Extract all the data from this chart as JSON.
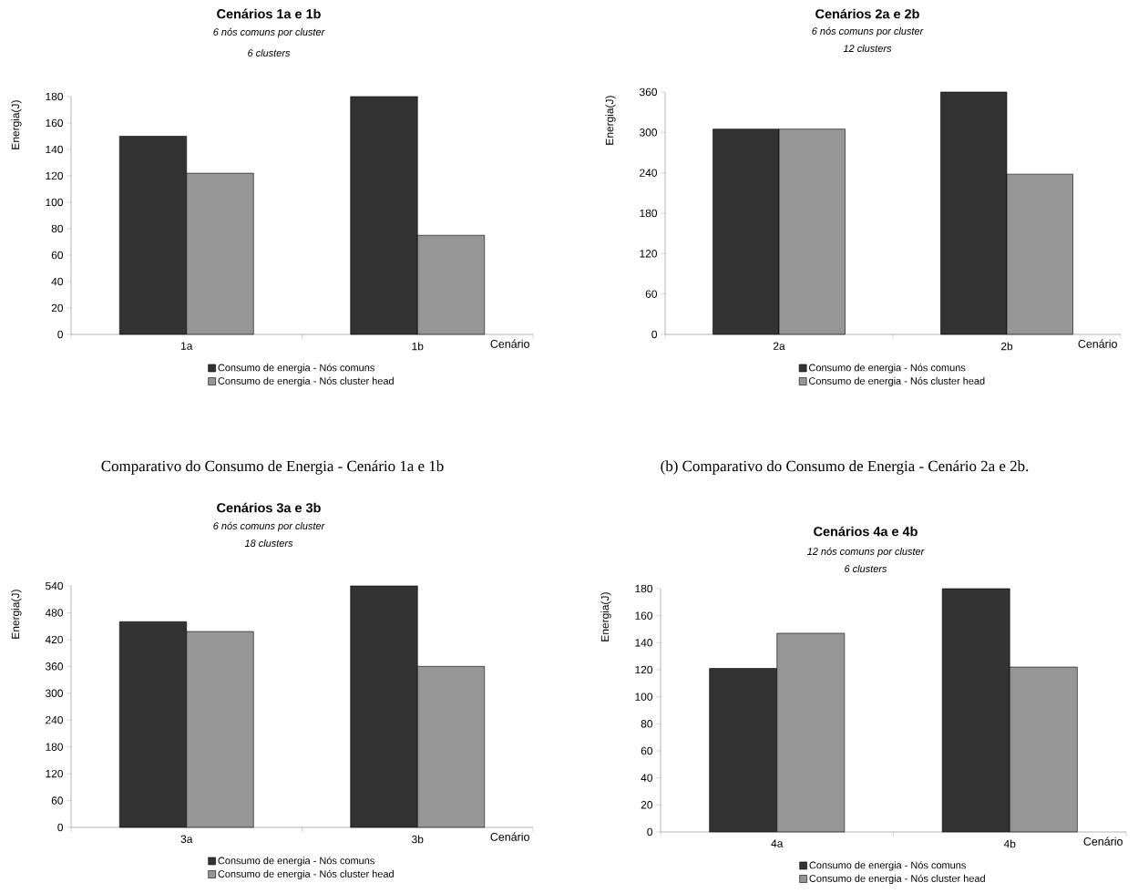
{
  "chart_data": [
    {
      "type": "bar",
      "title": "Cenários 1a e 1b",
      "subtitle": "6 nós comuns por cluster",
      "annotations": [
        "6 clusters",
        "Comparativo do Consumo de Energia - Cenário 1a e 1b"
      ],
      "xlabel": "Cenário",
      "ylabel": "Energia(J)",
      "categories": [
        "1a",
        "1b"
      ],
      "series": [
        {
          "name": "Consumo de energia - Nós comuns",
          "color": "#333333",
          "values": [
            150,
            180
          ]
        },
        {
          "name": "Consumo de energia - Nós cluster head",
          "color": "#969696",
          "values": [
            122,
            75
          ]
        }
      ],
      "ylim": [
        0,
        180
      ],
      "yticks": [
        0,
        20,
        40,
        60,
        80,
        100,
        120,
        140,
        160,
        180
      ],
      "legend": "bottom"
    },
    {
      "type": "bar",
      "title": "Cenários 2a e 2b",
      "subtitle": "6 nós comuns por cluster",
      "annotations": [
        "12 clusters",
        "(b) Comparativo do Consumo de Energia - Cenário 2a e 2b."
      ],
      "xlabel": "Cenário",
      "ylabel": "Energia(J)",
      "categories": [
        "2a",
        "2b"
      ],
      "series": [
        {
          "name": "Consumo de energia - Nós comuns",
          "color": "#333333",
          "values": [
            305,
            360
          ]
        },
        {
          "name": "Consumo de energia - Nós cluster head",
          "color": "#969696",
          "values": [
            305,
            238
          ]
        }
      ],
      "ylim": [
        0,
        360
      ],
      "yticks": [
        0,
        60,
        120,
        180,
        240,
        300,
        360
      ],
      "legend": "bottom"
    },
    {
      "type": "bar",
      "title": "Cenários 3a e 3b",
      "subtitle": "6 nós comuns por cluster",
      "annotations": [
        "18 clusters"
      ],
      "xlabel": "Cenário",
      "ylabel": "Energia(J)",
      "categories": [
        "3a",
        "3b"
      ],
      "series": [
        {
          "name": "Consumo de energia - Nós comuns",
          "color": "#333333",
          "values": [
            460,
            540
          ]
        },
        {
          "name": "Consumo de energia - Nós cluster head",
          "color": "#969696",
          "values": [
            438,
            360
          ]
        }
      ],
      "ylim": [
        0,
        540
      ],
      "yticks": [
        0,
        60,
        120,
        180,
        240,
        300,
        360,
        420,
        480,
        540
      ],
      "legend": "bottom"
    },
    {
      "type": "bar",
      "title": "Cenários 4a e 4b",
      "subtitle": "12 nós comuns por cluster",
      "annotations": [
        "6 clusters"
      ],
      "xlabel": "Cenário",
      "ylabel": "Energia(J)",
      "categories": [
        "4a",
        "4b"
      ],
      "series": [
        {
          "name": "Consumo de energia - Nós comuns",
          "color": "#333333",
          "values": [
            121,
            180
          ]
        },
        {
          "name": "Consumo de energia - Nós cluster head",
          "color": "#969696",
          "values": [
            147,
            122
          ]
        }
      ],
      "ylim": [
        0,
        180
      ],
      "yticks": [
        0,
        20,
        40,
        60,
        80,
        100,
        120,
        140,
        160,
        180
      ],
      "legend": "bottom"
    }
  ]
}
